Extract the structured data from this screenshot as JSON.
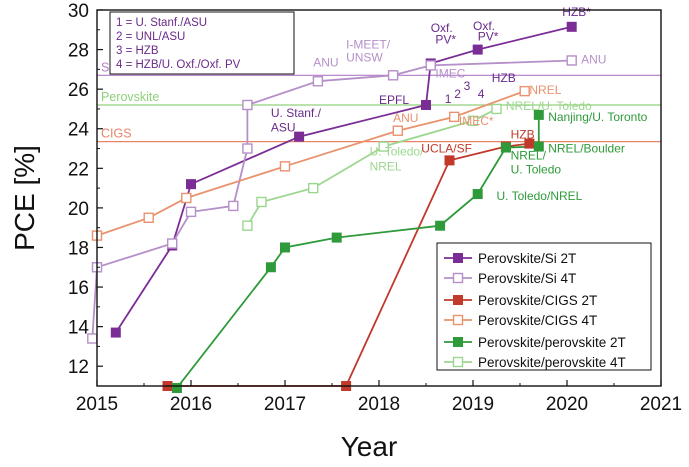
{
  "chart_data": {
    "type": "line",
    "xlabel": "Year",
    "ylabel": "PCE [%]",
    "xlim": [
      2015,
      2021
    ],
    "ylim": [
      11,
      30
    ],
    "xticks": [
      2015,
      2016,
      2017,
      2018,
      2019,
      2020,
      2021
    ],
    "yticks": [
      12,
      14,
      16,
      18,
      20,
      22,
      24,
      26,
      28,
      30
    ],
    "reference_lines": [
      {
        "name": "Silicon",
        "y": 26.7,
        "color": "#b07cc6"
      },
      {
        "name": "Perovskite",
        "y": 25.2,
        "color": "#8fd07a"
      },
      {
        "name": "CIGS",
        "y": 23.35,
        "color": "#e8846a"
      }
    ],
    "series": [
      {
        "name": "Perovskite/Si 2T",
        "color": "#7b2d96",
        "filled": true,
        "points": [
          [
            2015.2,
            13.7
          ],
          [
            2015.8,
            18.1
          ],
          [
            2016.0,
            21.2
          ],
          [
            2017.15,
            23.6
          ],
          [
            2018.5,
            25.2
          ],
          [
            2018.55,
            27.3
          ],
          [
            2019.05,
            28.0
          ],
          [
            2020.05,
            29.15
          ]
        ]
      },
      {
        "name": "Perovskite/Si 4T",
        "color": "#b48fc8",
        "filled": false,
        "points": [
          [
            2014.95,
            13.4
          ],
          [
            2015.0,
            17.0
          ],
          [
            2015.8,
            18.2
          ],
          [
            2016.0,
            19.8
          ],
          [
            2016.45,
            20.1
          ],
          [
            2016.6,
            23.0
          ],
          [
            2016.6,
            25.2
          ],
          [
            2017.35,
            26.4
          ],
          [
            2018.15,
            26.7
          ],
          [
            2018.55,
            27.2
          ],
          [
            2020.05,
            27.45
          ]
        ]
      },
      {
        "name": "Perovskite/CIGS 2T",
        "color": "#c0392b",
        "filled": true,
        "points": [
          [
            2015.75,
            11.0
          ],
          [
            2017.65,
            11.0
          ],
          [
            2018.75,
            22.4
          ],
          [
            2019.35,
            23.1
          ],
          [
            2019.6,
            23.25
          ]
        ]
      },
      {
        "name": "Perovskite/CIGS 4T",
        "color": "#e8926e",
        "filled": false,
        "points": [
          [
            2015.0,
            18.6
          ],
          [
            2015.55,
            19.5
          ],
          [
            2015.95,
            20.5
          ],
          [
            2017.0,
            22.1
          ],
          [
            2018.2,
            23.9
          ],
          [
            2018.8,
            24.6
          ],
          [
            2019.55,
            25.9
          ]
        ]
      },
      {
        "name": "Perovskite/perovskite 2T",
        "color": "#2e9a3a",
        "filled": true,
        "points": [
          [
            2015.85,
            10.9
          ],
          [
            2016.85,
            17.0
          ],
          [
            2017.0,
            18.0
          ],
          [
            2017.55,
            18.5
          ],
          [
            2018.65,
            19.1
          ],
          [
            2019.05,
            20.7
          ],
          [
            2019.35,
            23.05
          ],
          [
            2019.7,
            23.1
          ],
          [
            2019.7,
            24.7
          ]
        ]
      },
      {
        "name": "Perovskite/perovskite 4T",
        "color": "#9cd68e",
        "filled": false,
        "points": [
          [
            2016.6,
            19.1
          ],
          [
            2016.75,
            20.3
          ],
          [
            2017.3,
            21.0
          ],
          [
            2018.05,
            23.1
          ],
          [
            2019.0,
            24.4
          ],
          [
            2019.25,
            25.0
          ]
        ]
      }
    ],
    "annotations": [
      {
        "text": "HZB*",
        "x": 2019.95,
        "y": 29.7,
        "color": "#6a2a8a"
      },
      {
        "text": "Oxf.",
        "x": 2018.55,
        "y": 28.9,
        "color": "#6a2a8a"
      },
      {
        "text": "PV*",
        "x": 2018.6,
        "y": 28.3,
        "color": "#6a2a8a"
      },
      {
        "text": "Oxf.",
        "x": 2019.0,
        "y": 29.0,
        "color": "#6a2a8a"
      },
      {
        "text": "PV*",
        "x": 2019.05,
        "y": 28.45,
        "color": "#6a2a8a"
      },
      {
        "text": "I-MEET/",
        "x": 2017.65,
        "y": 28.05,
        "color": "#b48fc8"
      },
      {
        "text": "UNSW",
        "x": 2017.65,
        "y": 27.4,
        "color": "#b48fc8"
      },
      {
        "text": "ANU",
        "x": 2017.3,
        "y": 27.15,
        "color": "#b48fc8"
      },
      {
        "text": "ANU",
        "x": 2020.15,
        "y": 27.3,
        "color": "#b48fc8"
      },
      {
        "text": "IMEC",
        "x": 2018.6,
        "y": 26.6,
        "color": "#b48fc8"
      },
      {
        "text": "EPFL",
        "x": 2018.0,
        "y": 25.25,
        "color": "#6a2a8a"
      },
      {
        "text": "1",
        "x": 2018.7,
        "y": 25.3,
        "color": "#6a2a8a"
      },
      {
        "text": "2",
        "x": 2018.8,
        "y": 25.55,
        "color": "#6a2a8a"
      },
      {
        "text": "3",
        "x": 2018.9,
        "y": 25.95,
        "color": "#6a2a8a"
      },
      {
        "text": "4",
        "x": 2019.05,
        "y": 25.55,
        "color": "#6a2a8a"
      },
      {
        "text": "HZB",
        "x": 2019.2,
        "y": 26.35,
        "color": "#6a2a8a"
      },
      {
        "text": "U. Stanf./",
        "x": 2016.85,
        "y": 24.6,
        "color": "#6a2a8a"
      },
      {
        "text": "ASU",
        "x": 2016.85,
        "y": 23.85,
        "color": "#6a2a8a"
      },
      {
        "text": "NREL",
        "x": 2019.6,
        "y": 25.75,
        "color": "#e8926e"
      },
      {
        "text": "NREL/U. Toledo",
        "x": 2019.35,
        "y": 24.95,
        "color": "#9cd68e"
      },
      {
        "text": "ANU",
        "x": 2018.15,
        "y": 24.35,
        "color": "#e8926e"
      },
      {
        "text": "IMEC*",
        "x": 2018.85,
        "y": 24.2,
        "color": "#e8926e"
      },
      {
        "text": "Nanjing/U. Toronto",
        "x": 2019.8,
        "y": 24.4,
        "color": "#2e9a3a"
      },
      {
        "text": "U. Toledo/",
        "x": 2017.9,
        "y": 22.65,
        "color": "#9cd68e"
      },
      {
        "text": "NREL",
        "x": 2017.9,
        "y": 21.9,
        "color": "#9cd68e"
      },
      {
        "text": "UCLA/SF",
        "x": 2018.45,
        "y": 22.8,
        "color": "#c0392b"
      },
      {
        "text": "HZB",
        "x": 2019.4,
        "y": 23.5,
        "color": "#c0392b"
      },
      {
        "text": "NREL/",
        "x": 2019.4,
        "y": 22.45,
        "color": "#2e9a3a"
      },
      {
        "text": "U. Toledo",
        "x": 2019.4,
        "y": 21.75,
        "color": "#2e9a3a"
      },
      {
        "text": "NREL/Boulder",
        "x": 2019.8,
        "y": 22.8,
        "color": "#2e9a3a"
      },
      {
        "text": "U. Toledo/NREL",
        "x": 2019.25,
        "y": 20.4,
        "color": "#2e9a3a"
      }
    ],
    "note_box": [
      "1 = U. Stanf./ASU",
      "2 = UNL/ASU",
      "3 = HZB",
      "4 = HZB/U. Oxf./Oxf. PV"
    ],
    "legend_position": "bottom-right",
    "grid": false
  }
}
